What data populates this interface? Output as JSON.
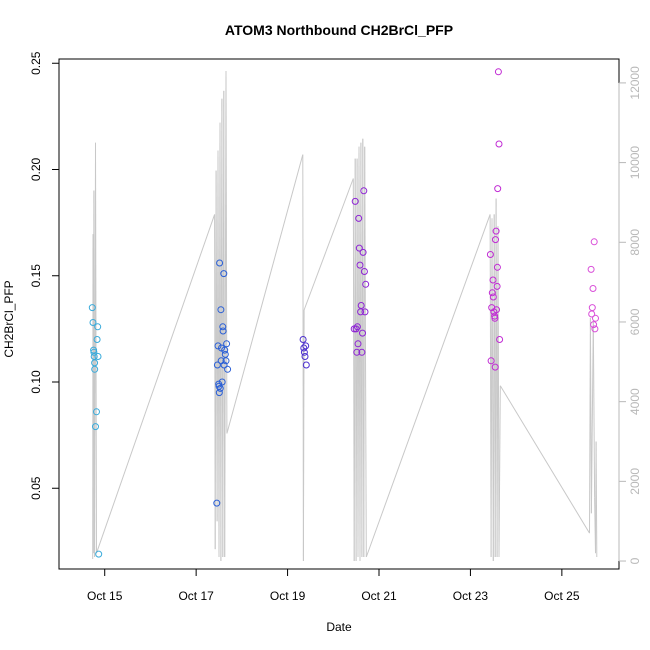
{
  "chart_data": {
    "type": "scatter",
    "title": "ATOM3 Northbound CH2BrCl_PFP",
    "xlabel": "Date",
    "ylabel": "CH2BrCl_PFP",
    "xlim": [
      "2016-10-14T00:00",
      "2016-10-26T06:00"
    ],
    "ylim": [
      0.012,
      0.252
    ],
    "y2lim": [
      -200,
      12600
    ],
    "x_ticks": [
      {
        "date": "2016-10-15T00:00",
        "label": "Oct 15"
      },
      {
        "date": "2016-10-17T00:00",
        "label": "Oct 17"
      },
      {
        "date": "2016-10-19T00:00",
        "label": "Oct 19"
      },
      {
        "date": "2016-10-21T00:00",
        "label": "Oct 21"
      },
      {
        "date": "2016-10-23T00:00",
        "label": "Oct 23"
      },
      {
        "date": "2016-10-25T00:00",
        "label": "Oct 25"
      }
    ],
    "y_ticks": [
      0.05,
      0.1,
      0.15,
      0.2,
      0.25
    ],
    "y_tick_labels": [
      "0.05",
      "0.10",
      "0.15",
      "0.20",
      "0.25"
    ],
    "y2_ticks": [
      0,
      2000,
      4000,
      6000,
      8000,
      10000,
      12000
    ],
    "y2_tick_labels": [
      "0",
      "2000",
      "4000",
      "6000",
      "8000",
      "10000",
      "12000"
    ],
    "grid": false,
    "point_series": [
      {
        "color": "#3aabdb",
        "points": [
          [
            "2016-10-14T17:30",
            0.135
          ],
          [
            "2016-10-14T17:50",
            0.128
          ],
          [
            "2016-10-14T18:10",
            0.115
          ],
          [
            "2016-10-14T18:20",
            0.114
          ],
          [
            "2016-10-14T18:30",
            0.112
          ],
          [
            "2016-10-14T18:40",
            0.109
          ],
          [
            "2016-10-14T18:45",
            0.106
          ],
          [
            "2016-10-14T19:10",
            0.079
          ],
          [
            "2016-10-14T19:40",
            0.086
          ],
          [
            "2016-10-14T20:00",
            0.12
          ],
          [
            "2016-10-14T20:20",
            0.126
          ],
          [
            "2016-10-14T20:30",
            0.112
          ],
          [
            "2016-10-14T20:50",
            0.019
          ]
        ]
      },
      {
        "color": "#2a5fd6",
        "points": [
          [
            "2016-10-17T10:50",
            0.043
          ],
          [
            "2016-10-17T11:10",
            0.108
          ],
          [
            "2016-10-17T11:30",
            0.117
          ],
          [
            "2016-10-17T11:50",
            0.099
          ],
          [
            "2016-10-17T12:00",
            0.098
          ],
          [
            "2016-10-17T12:10",
            0.095
          ],
          [
            "2016-10-17T12:20",
            0.156
          ],
          [
            "2016-10-17T12:40",
            0.097
          ],
          [
            "2016-10-17T13:00",
            0.134
          ],
          [
            "2016-10-17T13:10",
            0.11
          ],
          [
            "2016-10-17T13:20",
            0.116
          ],
          [
            "2016-10-17T13:40",
            0.1
          ],
          [
            "2016-10-17T14:00",
            0.126
          ],
          [
            "2016-10-17T14:10",
            0.124
          ],
          [
            "2016-10-17T14:30",
            0.151
          ],
          [
            "2016-10-17T14:40",
            0.108
          ],
          [
            "2016-10-17T15:00",
            0.115
          ],
          [
            "2016-10-17T15:20",
            0.113
          ],
          [
            "2016-10-17T15:40",
            0.11
          ],
          [
            "2016-10-17T16:00",
            0.118
          ],
          [
            "2016-10-17T16:30",
            0.106
          ]
        ]
      },
      {
        "color": "#4b2fcf",
        "points": [
          [
            "2016-10-19T08:10",
            0.12
          ],
          [
            "2016-10-19T08:30",
            0.116
          ],
          [
            "2016-10-19T08:50",
            0.114
          ],
          [
            "2016-10-19T09:10",
            0.112
          ],
          [
            "2016-10-19T09:30",
            0.117
          ],
          [
            "2016-10-19T09:50",
            0.108
          ]
        ]
      },
      {
        "color": "#8e24d4",
        "points": [
          [
            "2016-10-20T11:00",
            0.125
          ],
          [
            "2016-10-20T11:30",
            0.185
          ],
          [
            "2016-10-20T12:00",
            0.125
          ],
          [
            "2016-10-20T12:20",
            0.114
          ],
          [
            "2016-10-20T12:40",
            0.126
          ],
          [
            "2016-10-20T13:00",
            0.118
          ],
          [
            "2016-10-20T13:20",
            0.177
          ],
          [
            "2016-10-20T13:40",
            0.163
          ],
          [
            "2016-10-20T14:00",
            0.155
          ],
          [
            "2016-10-20T14:20",
            0.133
          ],
          [
            "2016-10-20T14:40",
            0.136
          ],
          [
            "2016-10-20T15:00",
            0.114
          ],
          [
            "2016-10-20T15:20",
            0.123
          ],
          [
            "2016-10-20T15:40",
            0.161
          ],
          [
            "2016-10-20T16:00",
            0.19
          ],
          [
            "2016-10-20T16:20",
            0.152
          ],
          [
            "2016-10-20T16:40",
            0.133
          ],
          [
            "2016-10-20T17:00",
            0.146
          ]
        ]
      },
      {
        "color": "#c12bd4",
        "points": [
          [
            "2016-10-23T10:30",
            0.16
          ],
          [
            "2016-10-23T10:50",
            0.11
          ],
          [
            "2016-10-23T11:10",
            0.135
          ],
          [
            "2016-10-23T11:30",
            0.142
          ],
          [
            "2016-10-23T11:50",
            0.148
          ],
          [
            "2016-10-23T12:00",
            0.14
          ],
          [
            "2016-10-23T12:20",
            0.133
          ],
          [
            "2016-10-23T12:40",
            0.131
          ],
          [
            "2016-10-23T13:00",
            0.107
          ],
          [
            "2016-10-23T13:10",
            0.167
          ],
          [
            "2016-10-23T13:30",
            0.171
          ],
          [
            "2016-10-23T13:40",
            0.134
          ],
          [
            "2016-10-23T14:00",
            0.145
          ],
          [
            "2016-10-23T14:10",
            0.154
          ],
          [
            "2016-10-23T14:20",
            0.191
          ],
          [
            "2016-10-23T14:40",
            0.246
          ],
          [
            "2016-10-23T15:00",
            0.212
          ],
          [
            "2016-10-23T15:20",
            0.12
          ],
          [
            "2016-10-23T12:50",
            0.13
          ]
        ]
      },
      {
        "color": "#d94fd9",
        "points": [
          [
            "2016-10-25T15:20",
            0.153
          ],
          [
            "2016-10-25T15:40",
            0.132
          ],
          [
            "2016-10-25T16:00",
            0.135
          ],
          [
            "2016-10-25T16:20",
            0.144
          ],
          [
            "2016-10-25T16:40",
            0.127
          ],
          [
            "2016-10-25T17:00",
            0.166
          ],
          [
            "2016-10-25T17:20",
            0.125
          ],
          [
            "2016-10-25T17:40",
            0.13
          ]
        ]
      }
    ],
    "line_series": {
      "color": "#c8c8c8",
      "axis": "right",
      "points": [
        [
          "2016-10-14T17:40",
          50
        ],
        [
          "2016-10-14T17:50",
          8200
        ],
        [
          "2016-10-14T18:00",
          200
        ],
        [
          "2016-10-14T18:20",
          9300
        ],
        [
          "2016-10-14T18:40",
          100
        ],
        [
          "2016-10-14T19:10",
          10500
        ],
        [
          "2016-10-14T19:40",
          200
        ],
        [
          "2016-10-17T09:40",
          8700
        ],
        [
          "2016-10-17T10:00",
          300
        ],
        [
          "2016-10-17T10:30",
          9800
        ],
        [
          "2016-10-17T11:00",
          1000
        ],
        [
          "2016-10-17T11:30",
          10300
        ],
        [
          "2016-10-17T12:00",
          100
        ],
        [
          "2016-10-17T12:30",
          11000
        ],
        [
          "2016-10-17T13:00",
          0
        ],
        [
          "2016-10-17T13:30",
          11600
        ],
        [
          "2016-10-17T14:00",
          100
        ],
        [
          "2016-10-17T14:30",
          11800
        ],
        [
          "2016-10-17T15:00",
          100
        ],
        [
          "2016-10-17T15:40",
          12300
        ],
        [
          "2016-10-17T16:10",
          3200
        ],
        [
          "2016-10-19T08:00",
          10200
        ],
        [
          "2016-10-19T08:20",
          0
        ],
        [
          "2016-10-19T08:40",
          6300
        ],
        [
          "2016-10-20T10:30",
          9600
        ],
        [
          "2016-10-20T11:00",
          0
        ],
        [
          "2016-10-20T11:30",
          10100
        ],
        [
          "2016-10-20T12:00",
          0
        ],
        [
          "2016-10-20T12:30",
          10100
        ],
        [
          "2016-10-20T13:00",
          100
        ],
        [
          "2016-10-20T13:30",
          10400
        ],
        [
          "2016-10-20T14:00",
          0
        ],
        [
          "2016-10-20T14:30",
          10500
        ],
        [
          "2016-10-20T15:00",
          100
        ],
        [
          "2016-10-20T15:30",
          10600
        ],
        [
          "2016-10-20T16:00",
          100
        ],
        [
          "2016-10-20T16:30",
          10400
        ],
        [
          "2016-10-20T17:20",
          100
        ],
        [
          "2016-10-23T10:20",
          8700
        ],
        [
          "2016-10-23T10:50",
          100
        ],
        [
          "2016-10-23T11:20",
          8600
        ],
        [
          "2016-10-23T12:00",
          0
        ],
        [
          "2016-10-23T12:30",
          8700
        ],
        [
          "2016-10-23T13:00",
          100
        ],
        [
          "2016-10-23T13:30",
          9100
        ],
        [
          "2016-10-23T14:00",
          100
        ],
        [
          "2016-10-23T14:30",
          8400
        ],
        [
          "2016-10-23T15:00",
          100
        ],
        [
          "2016-10-23T15:40",
          4400
        ],
        [
          "2016-10-25T14:30",
          700
        ],
        [
          "2016-10-25T15:00",
          6100
        ],
        [
          "2016-10-25T15:30",
          1200
        ],
        [
          "2016-10-25T16:30",
          6000
        ],
        [
          "2016-10-25T17:10",
          1600
        ],
        [
          "2016-10-25T17:40",
          200
        ],
        [
          "2016-10-25T18:00",
          3000
        ],
        [
          "2016-10-25T18:20",
          100
        ]
      ]
    }
  }
}
